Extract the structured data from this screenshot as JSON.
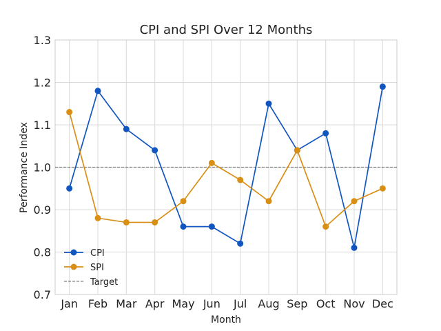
{
  "chart_data": {
    "type": "line",
    "title": "CPI and SPI Over 12 Months",
    "xlabel": "Month",
    "ylabel": "Performance Index",
    "categories": [
      "Jan",
      "Feb",
      "Mar",
      "Apr",
      "May",
      "Jun",
      "Jul",
      "Aug",
      "Sep",
      "Oct",
      "Nov",
      "Dec"
    ],
    "ylim": [
      0.7,
      1.3
    ],
    "yticks": [
      "0.7",
      "0.8",
      "0.9",
      "1.0",
      "1.1",
      "1.2",
      "1.3"
    ],
    "grid": true,
    "legend_position": "lower-left",
    "series": [
      {
        "name": "CPI",
        "color": "#1155c0",
        "marker": "circle",
        "values": [
          0.95,
          1.18,
          1.09,
          1.04,
          0.86,
          0.86,
          0.82,
          1.15,
          1.04,
          1.08,
          0.81,
          1.19
        ]
      },
      {
        "name": "SPI",
        "color": "#d98e14",
        "marker": "circle",
        "values": [
          1.13,
          0.88,
          0.87,
          0.87,
          0.92,
          1.01,
          0.97,
          0.92,
          1.04,
          0.86,
          0.92,
          0.95
        ]
      }
    ],
    "reference_lines": [
      {
        "name": "Target",
        "y": 1.0,
        "color": "#808080",
        "style": "dashed"
      }
    ]
  }
}
